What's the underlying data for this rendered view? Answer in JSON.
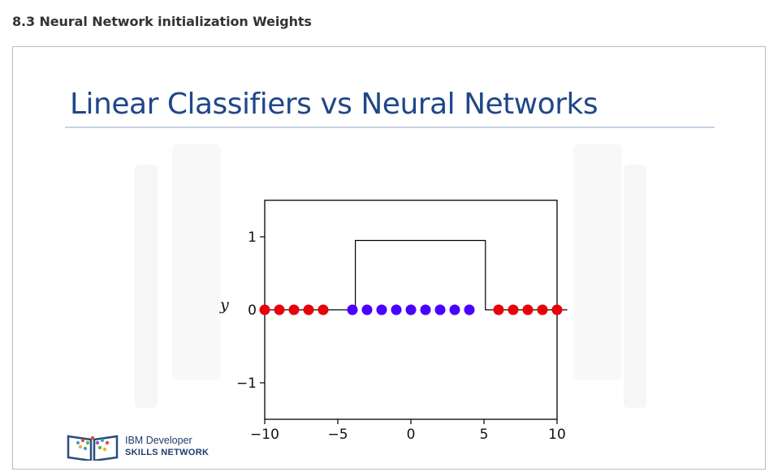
{
  "page": {
    "heading": "8.3 Neural Network initialization Weights"
  },
  "slide": {
    "title": "Linear Classifiers vs Neural Networks"
  },
  "logo": {
    "line1": "IBM Developer",
    "line2": "SKILLS NETWORK"
  },
  "chart_data": {
    "type": "scatter",
    "ylabel": "y",
    "xlim": [
      -10,
      10
    ],
    "ylim": [
      -1.5,
      1.5
    ],
    "xticks": [
      "−10",
      "−5",
      "0",
      "5",
      "10"
    ],
    "yticks": [
      "1",
      "0",
      "−1"
    ],
    "xtick_values": [
      -10,
      -5,
      0,
      5,
      10
    ],
    "ytick_values": [
      1,
      0,
      -1
    ],
    "step_function": {
      "x": [
        -10,
        -3.8,
        -3.8,
        5.1,
        5.1,
        10.7
      ],
      "y": [
        0,
        0,
        0.95,
        0.95,
        0,
        0
      ]
    },
    "series": [
      {
        "color": "#e8000b",
        "x": [
          -10,
          -9,
          -8,
          -7,
          -6,
          6,
          7,
          8,
          9,
          10
        ],
        "y": [
          0,
          0,
          0,
          0,
          0,
          0,
          0,
          0,
          0,
          0
        ]
      },
      {
        "color": "#4a00ff",
        "x": [
          -4,
          -3,
          -2,
          -1,
          0,
          1,
          2,
          3,
          4
        ],
        "y": [
          0,
          0,
          0,
          0,
          0,
          0,
          0,
          0,
          0
        ]
      }
    ],
    "grid": false
  }
}
